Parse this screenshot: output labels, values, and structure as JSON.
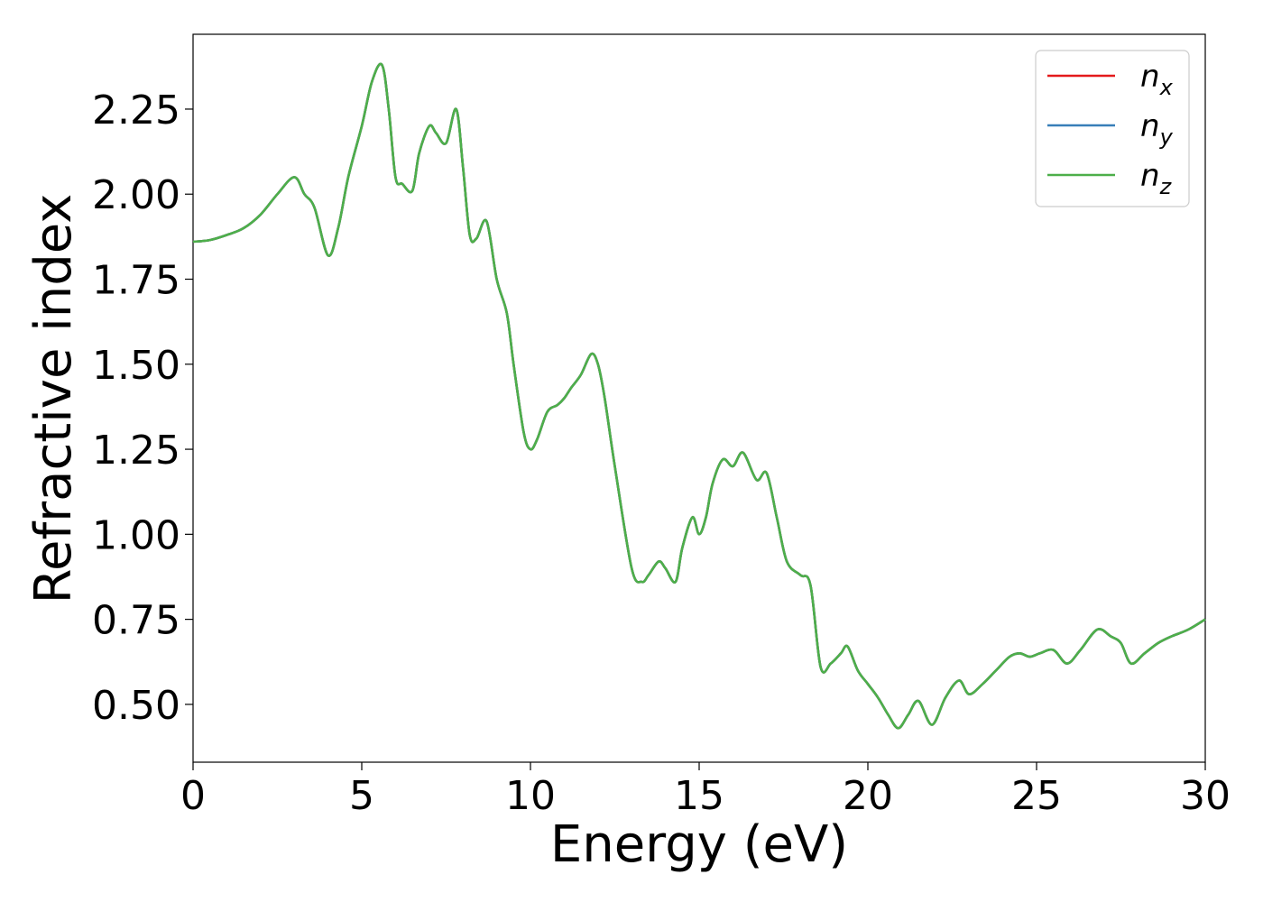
{
  "chart_data": {
    "type": "line",
    "xlabel": "Energy (eV)",
    "ylabel": "Refractive index",
    "xlim": [
      0,
      30
    ],
    "ylim": [
      0.33,
      2.47
    ],
    "xticks": [
      "0",
      "5",
      "10",
      "15",
      "20",
      "25",
      "30"
    ],
    "yticks": [
      "0.50",
      "0.75",
      "1.00",
      "1.25",
      "1.50",
      "1.75",
      "2.00",
      "2.25"
    ],
    "grid": false,
    "legend_position": "top-right",
    "series": [
      {
        "name": "n",
        "sub": "x",
        "color": "#e41a1c"
      },
      {
        "name": "n",
        "sub": "y",
        "color": "#377eb8"
      },
      {
        "name": "n",
        "sub": "z",
        "color": "#4daf4a"
      }
    ],
    "x": [
      0,
      0.5,
      1.0,
      1.5,
      2.0,
      2.5,
      3.0,
      3.3,
      3.6,
      4.0,
      4.3,
      4.6,
      5.0,
      5.3,
      5.6,
      5.8,
      6.0,
      6.2,
      6.5,
      6.7,
      7.0,
      7.2,
      7.5,
      7.8,
      8.0,
      8.2,
      8.4,
      8.7,
      9.0,
      9.3,
      9.5,
      9.8,
      10.0,
      10.2,
      10.5,
      10.8,
      11.0,
      11.2,
      11.5,
      11.8,
      12.0,
      12.2,
      12.5,
      13.0,
      13.3,
      13.5,
      13.8,
      14.0,
      14.3,
      14.5,
      14.8,
      15.0,
      15.2,
      15.4,
      15.7,
      16.0,
      16.3,
      16.7,
      17.0,
      17.3,
      17.6,
      18.0,
      18.3,
      18.6,
      18.9,
      19.2,
      19.4,
      19.7,
      20.0,
      20.3,
      20.6,
      20.9,
      21.2,
      21.5,
      21.9,
      22.3,
      22.7,
      23.0,
      23.4,
      23.8,
      24.2,
      24.5,
      24.8,
      25.1,
      25.5,
      25.9,
      26.3,
      26.8,
      27.2,
      27.5,
      27.8,
      28.2,
      28.6,
      29.0,
      29.5,
      30.0
    ],
    "values": [
      1.86,
      1.865,
      1.88,
      1.9,
      1.94,
      2.0,
      2.05,
      2.0,
      1.96,
      1.82,
      1.9,
      2.05,
      2.2,
      2.33,
      2.38,
      2.25,
      2.05,
      2.03,
      2.01,
      2.12,
      2.2,
      2.18,
      2.15,
      2.25,
      2.08,
      1.88,
      1.87,
      1.92,
      1.75,
      1.65,
      1.5,
      1.3,
      1.25,
      1.28,
      1.36,
      1.38,
      1.4,
      1.43,
      1.47,
      1.53,
      1.5,
      1.4,
      1.2,
      0.9,
      0.86,
      0.88,
      0.92,
      0.9,
      0.86,
      0.96,
      1.05,
      1.0,
      1.05,
      1.15,
      1.22,
      1.2,
      1.24,
      1.16,
      1.18,
      1.05,
      0.92,
      0.88,
      0.85,
      0.61,
      0.62,
      0.65,
      0.67,
      0.6,
      0.56,
      0.52,
      0.47,
      0.43,
      0.47,
      0.51,
      0.44,
      0.52,
      0.57,
      0.53,
      0.56,
      0.6,
      0.64,
      0.65,
      0.64,
      0.65,
      0.66,
      0.62,
      0.66,
      0.72,
      0.7,
      0.68,
      0.62,
      0.65,
      0.68,
      0.7,
      0.72,
      0.75
    ]
  }
}
